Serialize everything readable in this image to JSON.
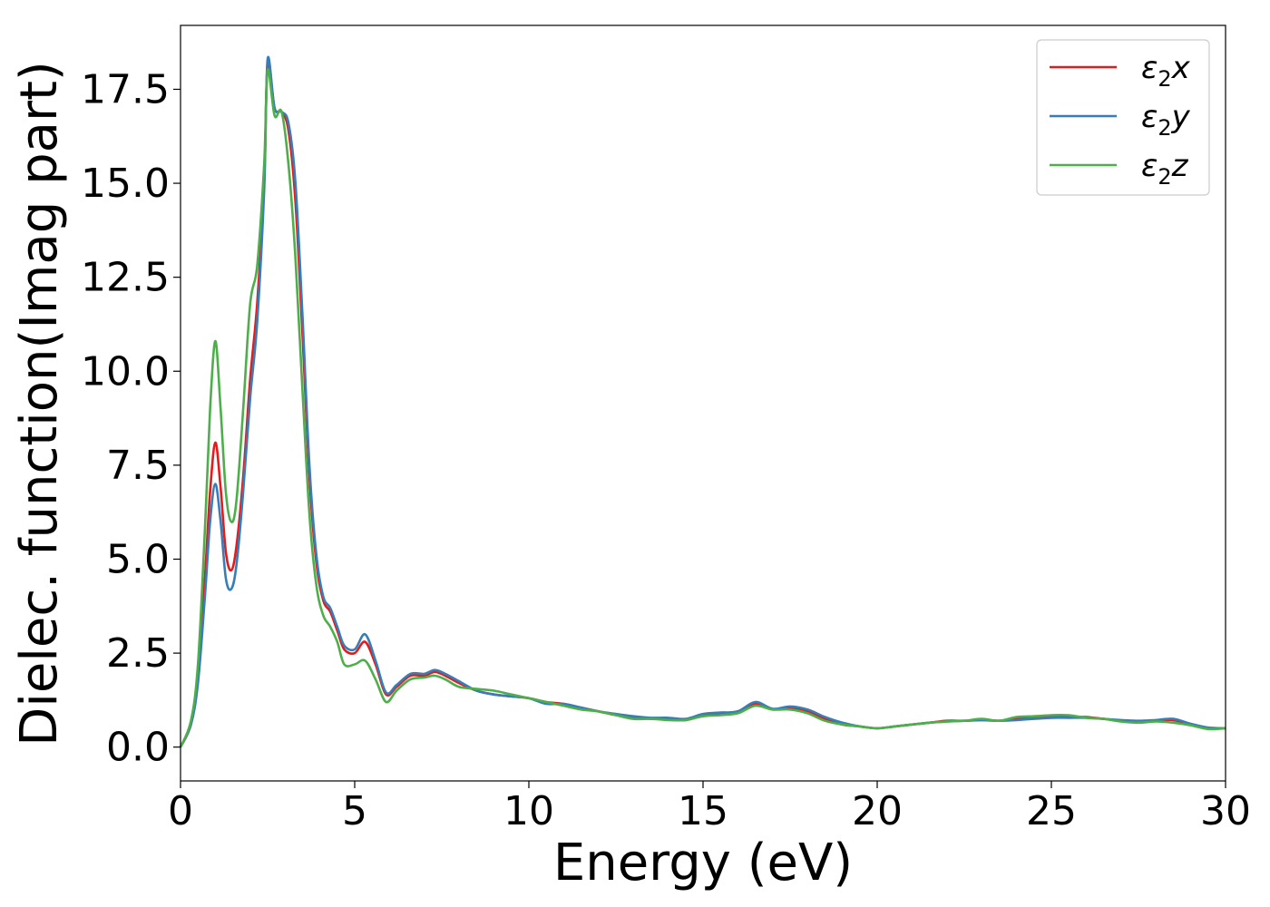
{
  "chart_data": {
    "type": "line",
    "title": "",
    "xlabel": "Energy (eV)",
    "ylabel": "Dielec. function(Imag part)",
    "xlim": [
      0,
      30
    ],
    "ylim": [
      -0.9,
      19.2
    ],
    "xticks": [
      0,
      5,
      10,
      15,
      20,
      25,
      30
    ],
    "xtick_labels": [
      "0",
      "5",
      "10",
      "15",
      "20",
      "25",
      "30"
    ],
    "yticks": [
      0,
      2.5,
      5,
      7.5,
      10,
      12.5,
      15,
      17.5
    ],
    "ytick_labels": [
      "0.0",
      "2.5",
      "5.0",
      "7.5",
      "10.0",
      "12.5",
      "15.0",
      "17.5"
    ],
    "grid": false,
    "legend_position": "top-right",
    "series": [
      {
        "name": "ε2x",
        "legend_main": "ε",
        "legend_sub": "2",
        "legend_var": "x",
        "color": "#e41a1c",
        "x": [
          0,
          0.3,
          0.5,
          0.7,
          0.85,
          1.0,
          1.15,
          1.3,
          1.45,
          1.6,
          1.8,
          2.0,
          2.2,
          2.4,
          2.5,
          2.7,
          2.9,
          3.1,
          3.3,
          3.5,
          3.7,
          3.9,
          4.1,
          4.3,
          4.5,
          4.7,
          5.0,
          5.3,
          5.6,
          5.9,
          6.2,
          6.6,
          7.0,
          7.3,
          7.6,
          8.0,
          8.5,
          9.0,
          9.5,
          10.0,
          10.5,
          11.0,
          11.5,
          12.0,
          12.5,
          13.0,
          13.5,
          14.0,
          14.5,
          15.0,
          15.5,
          16.0,
          16.5,
          17.0,
          17.5,
          18.0,
          18.5,
          19.0,
          19.5,
          20.0,
          20.5,
          21.0,
          21.5,
          22.0,
          22.5,
          23.0,
          23.5,
          24.0,
          24.5,
          25.0,
          25.5,
          26.0,
          26.5,
          27.0,
          27.5,
          28.0,
          28.5,
          29.0,
          29.5,
          30.0
        ],
        "y": [
          0.0,
          0.6,
          1.8,
          4.5,
          6.8,
          8.1,
          6.9,
          5.2,
          4.7,
          5.3,
          7.2,
          9.8,
          11.8,
          15.0,
          18.2,
          17.0,
          16.9,
          16.4,
          14.5,
          11.0,
          7.2,
          4.9,
          3.9,
          3.6,
          3.1,
          2.6,
          2.5,
          2.8,
          2.2,
          1.4,
          1.6,
          1.9,
          1.9,
          2.0,
          1.9,
          1.7,
          1.5,
          1.4,
          1.35,
          1.3,
          1.2,
          1.15,
          1.05,
          0.95,
          0.85,
          0.8,
          0.75,
          0.75,
          0.72,
          0.85,
          0.9,
          0.95,
          1.15,
          1.0,
          1.05,
          0.95,
          0.75,
          0.6,
          0.55,
          0.5,
          0.55,
          0.6,
          0.65,
          0.7,
          0.7,
          0.72,
          0.7,
          0.75,
          0.78,
          0.8,
          0.8,
          0.8,
          0.75,
          0.7,
          0.68,
          0.7,
          0.72,
          0.6,
          0.5,
          0.5
        ]
      },
      {
        "name": "ε2y",
        "legend_main": "ε",
        "legend_sub": "2",
        "legend_var": "y",
        "color": "#377eb8",
        "x": [
          0,
          0.3,
          0.5,
          0.7,
          0.85,
          1.0,
          1.15,
          1.3,
          1.45,
          1.6,
          1.8,
          2.0,
          2.2,
          2.4,
          2.5,
          2.7,
          2.9,
          3.1,
          3.3,
          3.5,
          3.7,
          3.9,
          4.1,
          4.3,
          4.5,
          4.7,
          5.0,
          5.3,
          5.6,
          5.9,
          6.2,
          6.6,
          7.0,
          7.3,
          7.6,
          8.0,
          8.5,
          9.0,
          9.5,
          10.0,
          10.5,
          11.0,
          11.5,
          12.0,
          12.5,
          13.0,
          13.5,
          14.0,
          14.5,
          15.0,
          15.5,
          16.0,
          16.5,
          17.0,
          17.5,
          18.0,
          18.5,
          19.0,
          19.5,
          20.0,
          20.5,
          21.0,
          21.5,
          22.0,
          22.5,
          23.0,
          23.5,
          24.0,
          24.5,
          25.0,
          25.5,
          26.0,
          26.5,
          27.0,
          27.5,
          28.0,
          28.5,
          29.0,
          29.5,
          30.0
        ],
        "y": [
          0.0,
          0.6,
          1.7,
          4.0,
          6.0,
          7.0,
          6.0,
          4.5,
          4.2,
          4.8,
          6.8,
          9.3,
          11.3,
          14.8,
          18.3,
          17.0,
          16.9,
          16.6,
          15.0,
          11.5,
          7.5,
          5.1,
          4.0,
          3.7,
          3.2,
          2.7,
          2.6,
          3.0,
          2.3,
          1.45,
          1.65,
          1.95,
          1.95,
          2.05,
          1.95,
          1.75,
          1.5,
          1.4,
          1.35,
          1.3,
          1.15,
          1.15,
          1.05,
          0.95,
          0.88,
          0.82,
          0.78,
          0.78,
          0.75,
          0.88,
          0.92,
          0.95,
          1.2,
          1.02,
          1.08,
          1.0,
          0.8,
          0.65,
          0.55,
          0.5,
          0.55,
          0.6,
          0.65,
          0.68,
          0.7,
          0.72,
          0.7,
          0.72,
          0.75,
          0.78,
          0.78,
          0.78,
          0.75,
          0.72,
          0.7,
          0.72,
          0.75,
          0.62,
          0.52,
          0.5
        ]
      },
      {
        "name": "ε2z",
        "legend_main": "ε",
        "legend_sub": "2",
        "legend_var": "z",
        "color": "#4daf4a",
        "x": [
          0,
          0.3,
          0.5,
          0.7,
          0.85,
          1.0,
          1.15,
          1.3,
          1.45,
          1.6,
          1.8,
          2.0,
          2.2,
          2.4,
          2.5,
          2.7,
          2.9,
          3.1,
          3.3,
          3.5,
          3.7,
          3.9,
          4.1,
          4.3,
          4.5,
          4.7,
          5.0,
          5.3,
          5.6,
          5.9,
          6.2,
          6.6,
          7.0,
          7.3,
          7.6,
          8.0,
          8.5,
          9.0,
          9.5,
          10.0,
          10.5,
          11.0,
          11.5,
          12.0,
          12.5,
          13.0,
          13.5,
          14.0,
          14.5,
          15.0,
          15.5,
          16.0,
          16.5,
          17.0,
          17.5,
          18.0,
          18.5,
          19.0,
          19.5,
          20.0,
          20.5,
          21.0,
          21.5,
          22.0,
          22.5,
          23.0,
          23.5,
          24.0,
          24.5,
          25.0,
          25.5,
          26.0,
          26.5,
          27.0,
          27.5,
          28.0,
          28.5,
          29.0,
          29.5,
          30.0
        ],
        "y": [
          0.0,
          0.7,
          2.2,
          5.8,
          9.0,
          10.8,
          9.0,
          6.8,
          6.0,
          6.5,
          9.0,
          11.8,
          12.8,
          15.5,
          18.0,
          16.8,
          16.9,
          15.5,
          13.0,
          9.5,
          6.2,
          4.3,
          3.5,
          3.2,
          2.8,
          2.2,
          2.2,
          2.3,
          1.8,
          1.2,
          1.5,
          1.8,
          1.85,
          1.9,
          1.8,
          1.6,
          1.55,
          1.5,
          1.4,
          1.3,
          1.2,
          1.1,
          1.0,
          0.95,
          0.85,
          0.75,
          0.75,
          0.72,
          0.72,
          0.82,
          0.85,
          0.9,
          1.1,
          1.0,
          1.0,
          0.9,
          0.7,
          0.6,
          0.55,
          0.5,
          0.55,
          0.6,
          0.65,
          0.68,
          0.7,
          0.75,
          0.7,
          0.8,
          0.82,
          0.85,
          0.85,
          0.78,
          0.75,
          0.68,
          0.65,
          0.68,
          0.65,
          0.58,
          0.48,
          0.5
        ]
      }
    ]
  }
}
